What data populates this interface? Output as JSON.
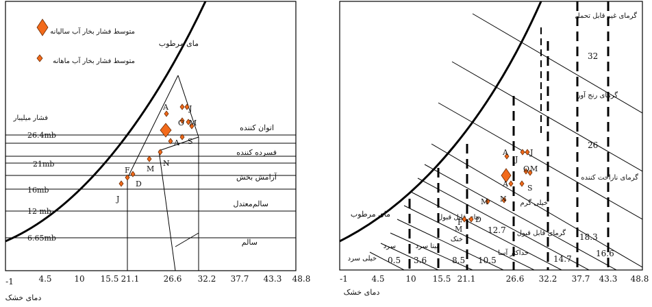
{
  "left_chart": {
    "x_ticks": [
      "-1",
      "4.5",
      "10",
      "15.5",
      "21.1",
      "26.6",
      "32.2",
      "37.7",
      "43.3",
      "48.8"
    ],
    "x_axis_label": "دمای خشک",
    "saturation_label": "مای مرطوب",
    "legend": {
      "annual": "متوسط فشار بخار آب سالیانه",
      "monthly": "متوسط فشار بخار آب ماهانه"
    },
    "pressure_title": "فشار میلیبار",
    "pressure_lines": [
      "26.4mb",
      "21mb",
      "16mb",
      "12 mb",
      "6.65mb"
    ],
    "zones": [
      "اتوان کننده",
      "فسرده کننده",
      "آرامش بخش",
      "سالم‌معتدل",
      "سالم"
    ],
    "months": [
      "A",
      "J",
      "O",
      "M",
      "A",
      "S",
      "N",
      "M",
      "F",
      "D",
      "J"
    ]
  },
  "right_chart": {
    "x_ticks": [
      "-1",
      "4.5",
      "10",
      "15.5",
      "21.1",
      "26.6",
      "32.2",
      "37.7",
      "43.3",
      "48.8"
    ],
    "x_axis_label": "دمای خشک",
    "saturation_label": "مای مرطوب",
    "zones": [
      "گرمای غیر قابل تحمل",
      "گرمای رنج آور",
      "گرمای ناراحت کننده",
      "خیلی گرم",
      "گرمای قابل قبول",
      "مای قابل قبول",
      "خنک",
      "بیتا سرد",
      "سرد",
      "خیلی سرد",
      "حداکثر آسا"
    ],
    "line_values": [
      "32",
      "26",
      "18.3",
      "16.6",
      "14.7",
      "12.7",
      "10.5",
      "8.5",
      "3.6",
      "0.5"
    ],
    "months": [
      "A",
      "J",
      "J",
      "O",
      "M",
      "A",
      "S",
      "M",
      "N",
      "F",
      "M",
      "D"
    ]
  }
}
